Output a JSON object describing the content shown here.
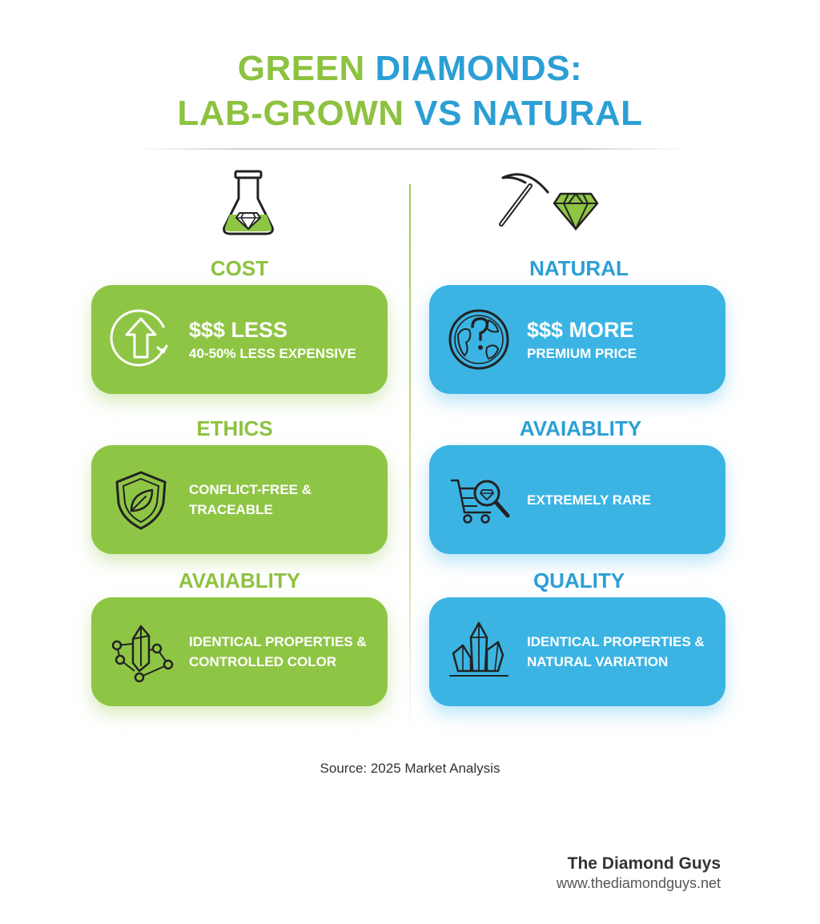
{
  "title": {
    "line1_green": "GREEN",
    "line1_blue": "DIAMONDS:",
    "line2_green": "LAB-GROWN",
    "line2_blue": "VS NATURAL"
  },
  "left": {
    "header_icon": "flask-diamond-icon",
    "sections": [
      {
        "label": "COST",
        "icon": "circular-up-arrow-icon",
        "big": "$$$ LESS",
        "lines": [
          "40-50% LESS EXPENSIVE"
        ]
      },
      {
        "label": "ETHICS",
        "icon": "shield-leaf-icon",
        "big": "",
        "lines": [
          "CONFLICT-FREE &",
          "TRACEABLE"
        ]
      },
      {
        "label": "AVAIABLITY",
        "icon": "crystal-network-icon",
        "big": "",
        "lines": [
          "IDENTICAL PROPERTIES &",
          "CONTROLLED COLOR"
        ]
      }
    ]
  },
  "right": {
    "header_icon": "pickaxe-diamond-icon",
    "sections": [
      {
        "label": "NATURAL",
        "icon": "globe-question-icon",
        "big": "$$$ MORE",
        "lines": [
          "PREMIUM PRICE"
        ]
      },
      {
        "label": "AVAIABLITY",
        "icon": "cart-magnifier-icon",
        "big": "",
        "lines": [
          "EXTREMELY RARE"
        ]
      },
      {
        "label": "QUALITY",
        "icon": "crystal-cluster-icon",
        "big": "",
        "lines": [
          "IDENTICAL PROPERTIES &",
          "NATURAL VARIATION"
        ]
      }
    ]
  },
  "source": "Source: 2025 Market Analysis",
  "brand": {
    "name": "The Diamond Guys",
    "url": "www.thediamondguys.net"
  },
  "colors": {
    "green": "#8fc545",
    "blue": "#3bb4e4",
    "title_green": "#8dc23f",
    "title_blue": "#2b9fd5"
  }
}
